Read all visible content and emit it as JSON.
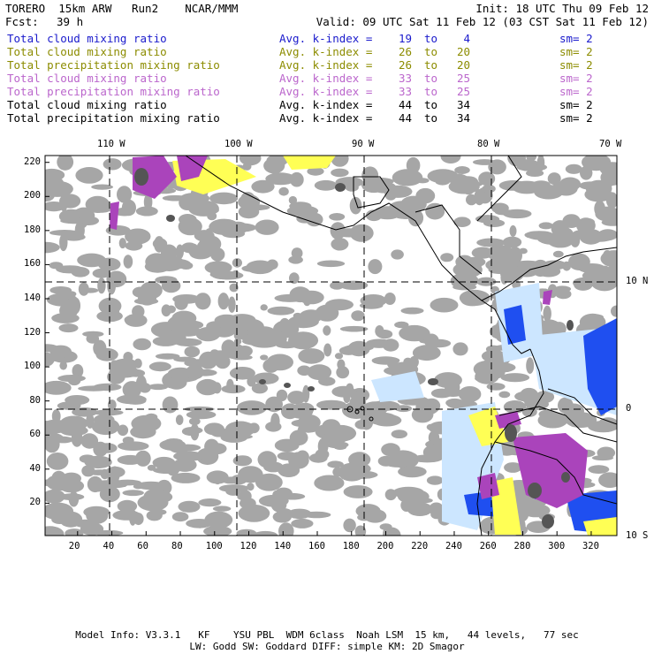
{
  "header": {
    "title_left": "TORERO  15km ARW   Run2    NCAR/MMM",
    "init": "Init: 18 UTC Thu 09 Feb 12",
    "fcst_label": "Fcst:",
    "fcst_value": "39 h",
    "valid": "Valid: 09 UTC Sat 11 Feb 12 (03 CST Sat 11 Feb 12)"
  },
  "legend": [
    {
      "label": "Total cloud mixing ratio",
      "kname": "Avg. k-index =",
      "from": "19",
      "to": "to",
      "end": "4",
      "sm": "sm= 2",
      "color": "#1a1acc"
    },
    {
      "label": "Total cloud mixing ratio",
      "kname": "Avg. k-index =",
      "from": "26",
      "to": "to",
      "end": "20",
      "sm": "sm= 2",
      "color": "#8c8c00"
    },
    {
      "label": "Total precipitation mixing ratio",
      "kname": "Avg. k-index =",
      "from": "26",
      "to": "to",
      "end": "20",
      "sm": "sm= 2",
      "color": "#8c8c00"
    },
    {
      "label": "Total cloud mixing ratio",
      "kname": "Avg. k-index =",
      "from": "33",
      "to": "to",
      "end": "25",
      "sm": "sm= 2",
      "color": "#bb66cc"
    },
    {
      "label": "Total precipitation mixing ratio",
      "kname": "Avg. k-index =",
      "from": "33",
      "to": "to",
      "end": "25",
      "sm": "sm= 2",
      "color": "#bb66cc"
    },
    {
      "label": "Total cloud mixing ratio",
      "kname": "Avg. k-index =",
      "from": "44",
      "to": "to",
      "end": "34",
      "sm": "sm= 2",
      "color": "#000000"
    },
    {
      "label": "Total precipitation mixing ratio",
      "kname": "Avg. k-index =",
      "from": "44",
      "to": "to",
      "end": "34",
      "sm": "sm= 2",
      "color": "#000000"
    }
  ],
  "axes": {
    "x_ticks": [
      "20",
      "40",
      "60",
      "80",
      "100",
      "120",
      "140",
      "160",
      "180",
      "200",
      "220",
      "240",
      "260",
      "280",
      "300",
      "320"
    ],
    "y_ticks": [
      "220",
      "200",
      "180",
      "160",
      "140",
      "120",
      "100",
      "80",
      "60",
      "40",
      "20"
    ],
    "lon_labels": [
      "110 W",
      "100 W",
      "90 W",
      "80 W",
      "70 W"
    ],
    "lat_labels": [
      "10 N",
      "0",
      "10 S"
    ]
  },
  "colors": {
    "cloud_gray": "#a6a6a6",
    "dark_cloud": "#555555",
    "yellow": "#ffff55",
    "purple": "#aa44bb",
    "blue": "#1f4ff0",
    "light_blue": "#cce6ff"
  },
  "footer": {
    "line1": "Model Info: V3.3.1   KF    YSU PBL  WDM 6class  Noah LSM  15 km,   44 levels,   77 sec",
    "line2": "LW: Godd SW: Goddard DIFF: simple KM: 2D Smagor"
  }
}
